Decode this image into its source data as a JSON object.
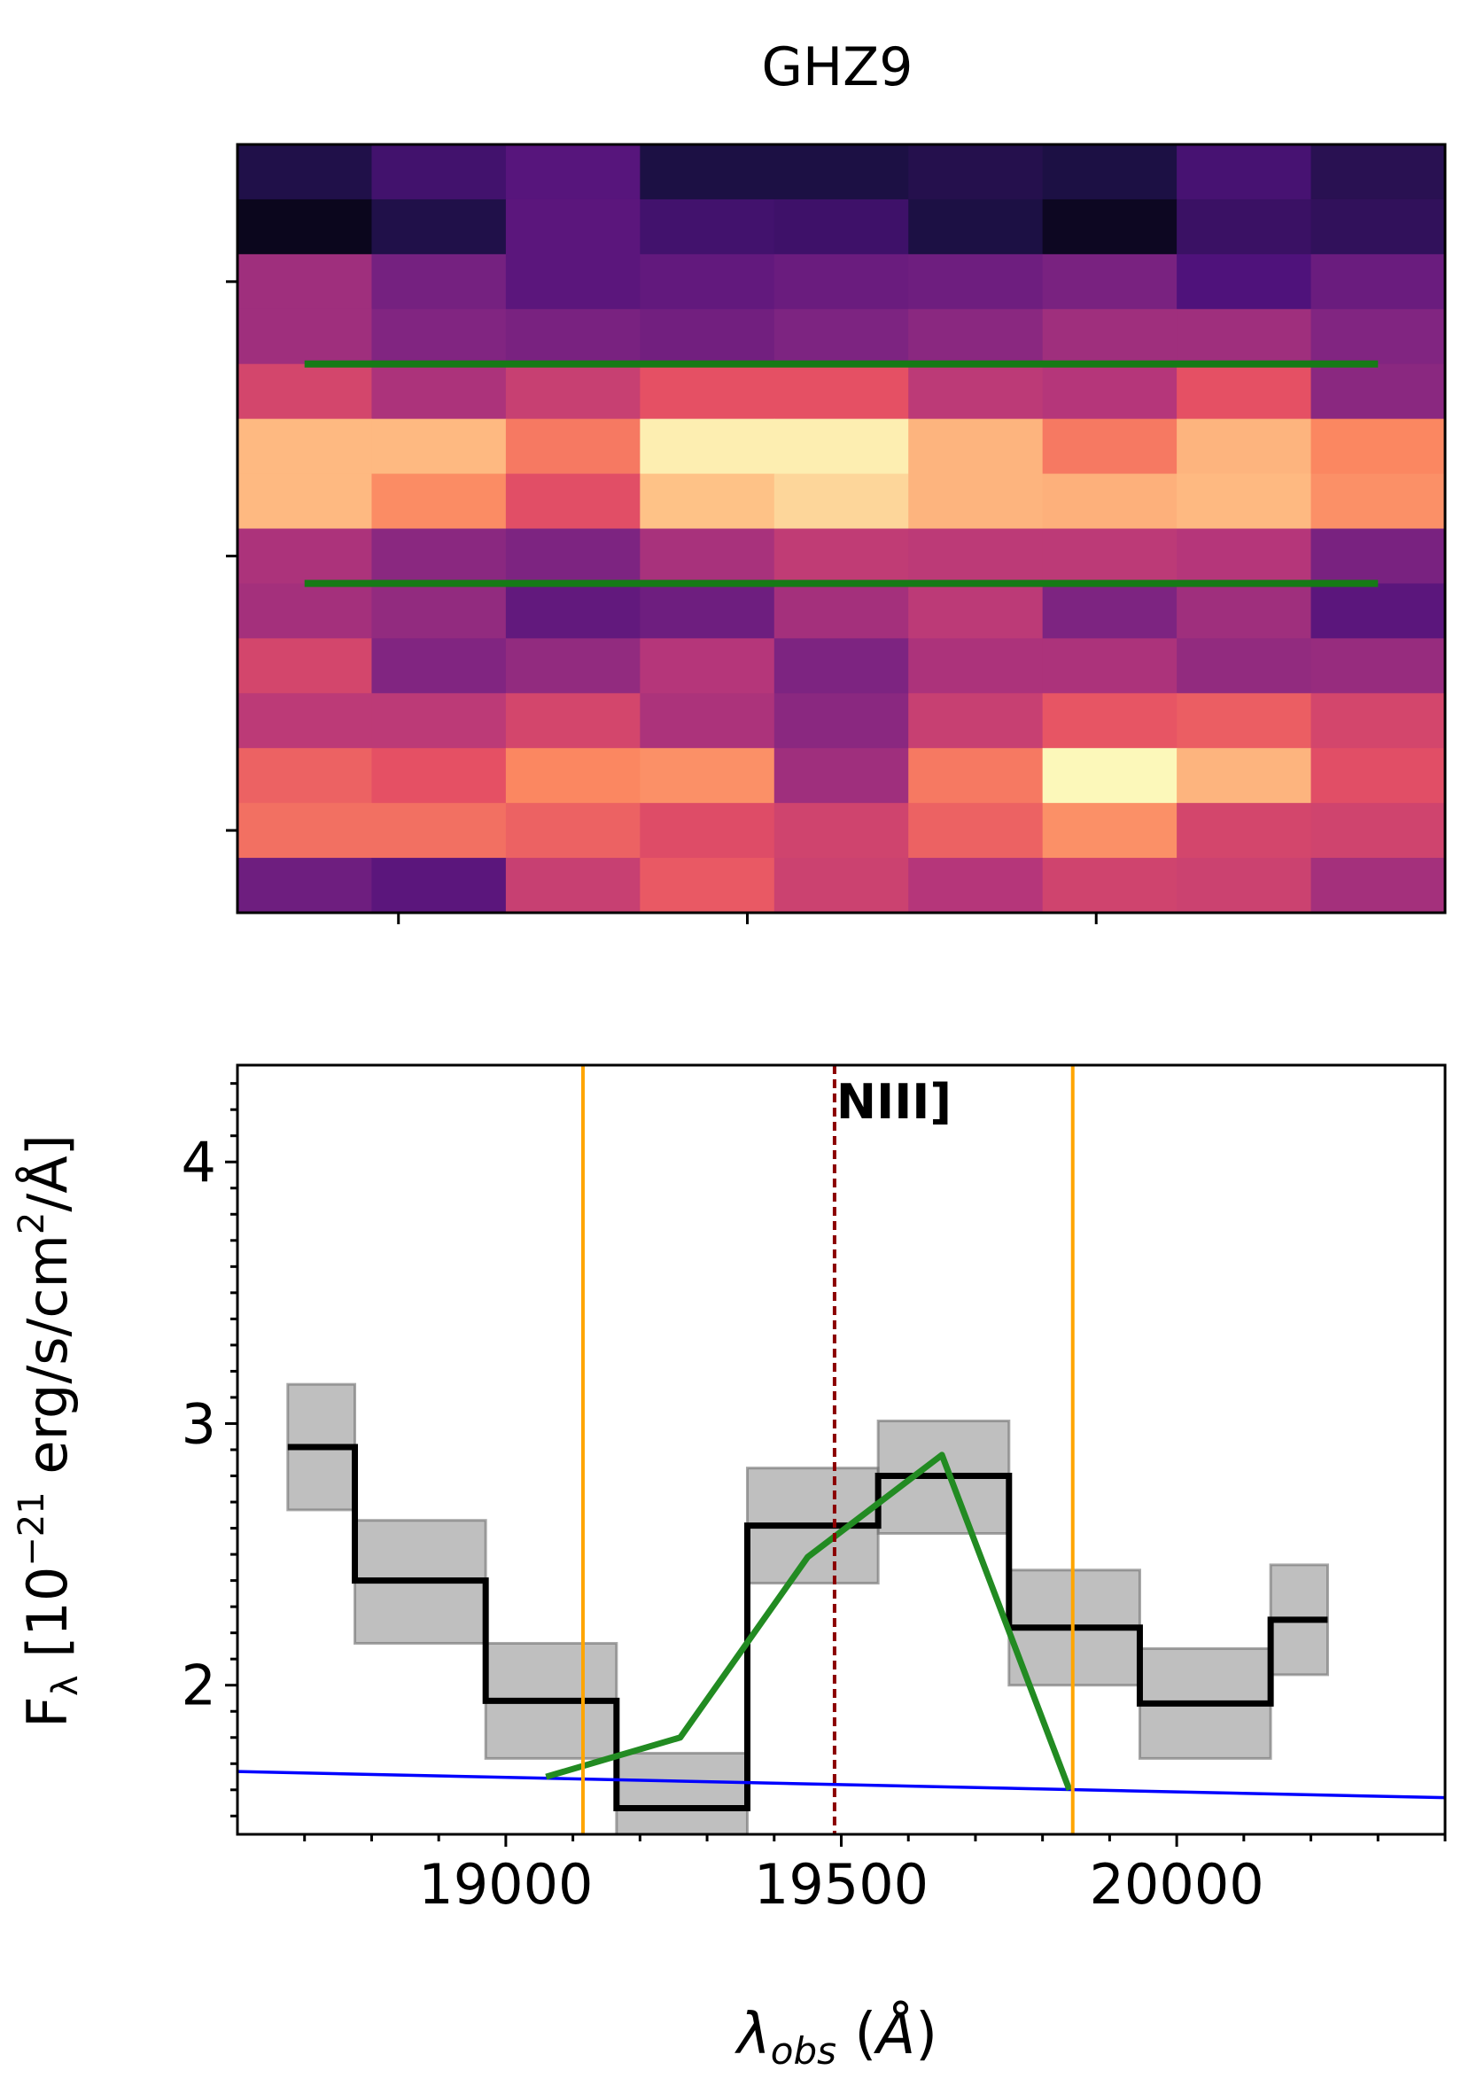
{
  "title": "GHZ9",
  "chart_data": [
    {
      "type": "heatmap",
      "colormap": "magma",
      "grid": false,
      "rows": 14,
      "cols": 9,
      "values": [
        [
          0.14,
          0.22,
          0.27,
          0.13,
          0.13,
          0.15,
          0.13,
          0.23,
          0.16
        ],
        [
          0.05,
          0.14,
          0.28,
          0.22,
          0.21,
          0.13,
          0.06,
          0.2,
          0.18
        ],
        [
          0.45,
          0.35,
          0.28,
          0.3,
          0.32,
          0.33,
          0.36,
          0.25,
          0.32
        ],
        [
          0.45,
          0.38,
          0.36,
          0.34,
          0.37,
          0.4,
          0.45,
          0.45,
          0.38
        ],
        [
          0.58,
          0.48,
          0.55,
          0.63,
          0.63,
          0.52,
          0.5,
          0.63,
          0.4
        ],
        [
          0.86,
          0.86,
          0.72,
          0.97,
          0.97,
          0.85,
          0.72,
          0.85,
          0.75
        ],
        [
          0.86,
          0.76,
          0.62,
          0.88,
          0.92,
          0.85,
          0.84,
          0.86,
          0.77
        ],
        [
          0.48,
          0.4,
          0.37,
          0.47,
          0.53,
          0.52,
          0.52,
          0.5,
          0.36
        ],
        [
          0.46,
          0.42,
          0.3,
          0.33,
          0.46,
          0.52,
          0.37,
          0.45,
          0.28
        ],
        [
          0.58,
          0.38,
          0.42,
          0.5,
          0.37,
          0.48,
          0.48,
          0.42,
          0.43
        ],
        [
          0.52,
          0.52,
          0.58,
          0.48,
          0.4,
          0.55,
          0.64,
          0.66,
          0.58
        ],
        [
          0.67,
          0.63,
          0.75,
          0.77,
          0.45,
          0.72,
          0.99,
          0.85,
          0.62
        ],
        [
          0.7,
          0.7,
          0.67,
          0.61,
          0.57,
          0.67,
          0.77,
          0.58,
          0.57
        ],
        [
          0.33,
          0.28,
          0.55,
          0.65,
          0.56,
          0.5,
          0.57,
          0.56,
          0.46
        ]
      ],
      "extraction_lines": [
        {
          "x": [
            0.5,
            8.5
          ],
          "y": 4.0,
          "color": "#167a16"
        },
        {
          "x": [
            0.5,
            8.5
          ],
          "y": 8.0,
          "color": "#167a16"
        }
      ],
      "y_ticks": [
        2.5,
        7.5,
        12.5
      ],
      "x_ticks": [
        1.2,
        3.8,
        6.4
      ]
    },
    {
      "type": "line",
      "title": "",
      "xlabel": "λ_obs (Å)",
      "ylabel": "F_λ [10^-21 erg/s/cm^2/Å]",
      "xlim": [
        18600,
        20400
      ],
      "ylim": [
        1.43,
        4.37
      ],
      "x_ticks": [
        19000,
        19500,
        20000
      ],
      "y_ticks": [
        2,
        3,
        4
      ],
      "spectrum_step": {
        "color": "#000000",
        "bin_edges": [
          18675,
          18775,
          18970,
          19165,
          19360,
          19555,
          19750,
          19945,
          20140,
          20225
        ],
        "values": [
          2.91,
          2.4,
          1.94,
          1.53,
          2.61,
          2.8,
          2.22,
          1.93,
          2.25
        ],
        "error_low": [
          2.67,
          2.16,
          1.72,
          1.43,
          2.39,
          2.58,
          2.0,
          1.72,
          2.04
        ],
        "error_high": [
          3.15,
          2.63,
          2.16,
          1.74,
          2.83,
          3.01,
          2.44,
          2.14,
          2.46
        ]
      },
      "model_fit": {
        "color": "#228b22",
        "x": [
          19060,
          19260,
          19450,
          19650,
          19840
        ],
        "y": [
          1.65,
          1.8,
          2.49,
          2.88,
          1.6
        ]
      },
      "continuum": {
        "color": "#0000ff",
        "x": [
          18600,
          20400
        ],
        "y": [
          1.67,
          1.57
        ]
      },
      "window_lines": {
        "color": "#ffa500",
        "x": [
          19115,
          19845
        ]
      },
      "line_marker": {
        "label": "NIII]",
        "x": 19490,
        "color": "#8b0000",
        "style": "dashed"
      }
    }
  ]
}
